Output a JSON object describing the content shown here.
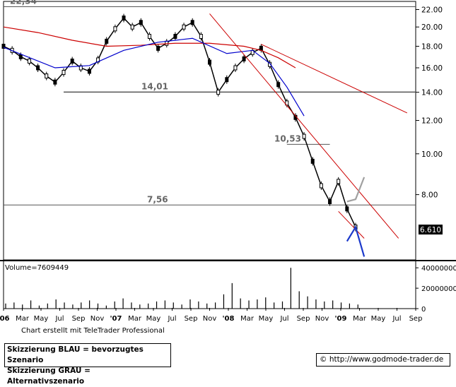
{
  "chart_data": {
    "type": "candlestick",
    "x_ticks": [
      "'06",
      "Mar",
      "May",
      "Jul",
      "Sep",
      "Nov",
      "'07",
      "Mar",
      "May",
      "Jul",
      "Sep",
      "Nov",
      "'08",
      "Mar",
      "May",
      "Jul",
      "Sep",
      "Nov",
      "'09",
      "Mar",
      "May",
      "Jul",
      "Sep"
    ],
    "y_ticks": [
      "22.00",
      "20.00",
      "18.00",
      "16.00",
      "14.00",
      "12.00",
      "10.00",
      "8.00"
    ],
    "ylim": [
      5.6,
      23.0
    ],
    "scale": "log",
    "volume_label": "Volume=7609449",
    "volume_ticks": [
      "40000000",
      "20000000",
      "0"
    ],
    "volume_ylim": [
      0,
      45000000
    ],
    "last_price_label": "6.610",
    "levels": [
      {
        "label": "22,34",
        "value": 22.34
      },
      {
        "label": "14,01",
        "value": 14.01
      },
      {
        "label": "10,53",
        "value": 10.53
      },
      {
        "label": "7,56",
        "value": 7.56
      }
    ],
    "price_path": [
      {
        "x": 0,
        "y": 18.0
      },
      {
        "x": 1,
        "y": 17.6
      },
      {
        "x": 2,
        "y": 17.0
      },
      {
        "x": 3,
        "y": 16.6
      },
      {
        "x": 4,
        "y": 16.0
      },
      {
        "x": 5,
        "y": 15.3
      },
      {
        "x": 6,
        "y": 14.8
      },
      {
        "x": 7,
        "y": 15.6
      },
      {
        "x": 8,
        "y": 16.6
      },
      {
        "x": 9,
        "y": 16.0
      },
      {
        "x": 10,
        "y": 15.7
      },
      {
        "x": 11,
        "y": 16.7
      },
      {
        "x": 12,
        "y": 18.5
      },
      {
        "x": 13,
        "y": 19.8
      },
      {
        "x": 14,
        "y": 21.0
      },
      {
        "x": 15,
        "y": 20.0
      },
      {
        "x": 16,
        "y": 20.5
      },
      {
        "x": 17,
        "y": 19.0
      },
      {
        "x": 18,
        "y": 17.8
      },
      {
        "x": 19,
        "y": 18.3
      },
      {
        "x": 20,
        "y": 19.0
      },
      {
        "x": 21,
        "y": 20.0
      },
      {
        "x": 22,
        "y": 20.5
      },
      {
        "x": 23,
        "y": 19.0
      },
      {
        "x": 24,
        "y": 16.5
      },
      {
        "x": 25,
        "y": 14.0
      },
      {
        "x": 26,
        "y": 15.0
      },
      {
        "x": 27,
        "y": 16.0
      },
      {
        "x": 28,
        "y": 16.8
      },
      {
        "x": 29,
        "y": 17.4
      },
      {
        "x": 30,
        "y": 17.8
      },
      {
        "x": 31,
        "y": 16.3
      },
      {
        "x": 32,
        "y": 14.6
      },
      {
        "x": 33,
        "y": 13.2
      },
      {
        "x": 34,
        "y": 12.2
      },
      {
        "x": 35,
        "y": 11.0
      },
      {
        "x": 36,
        "y": 9.6
      },
      {
        "x": 37,
        "y": 8.4
      },
      {
        "x": 38,
        "y": 7.7
      },
      {
        "x": 39,
        "y": 8.6
      },
      {
        "x": 40,
        "y": 7.4
      },
      {
        "x": 41,
        "y": 6.7
      }
    ],
    "series": [
      {
        "name": "MA",
        "color": "#cc0000",
        "values": [
          {
            "x": 0,
            "y": 20.0
          },
          {
            "x": 4,
            "y": 19.4
          },
          {
            "x": 8,
            "y": 18.6
          },
          {
            "x": 12,
            "y": 18.0
          },
          {
            "x": 16,
            "y": 18.1
          },
          {
            "x": 20,
            "y": 18.3
          },
          {
            "x": 24,
            "y": 18.3
          },
          {
            "x": 28,
            "y": 18.0
          },
          {
            "x": 30,
            "y": 17.6
          },
          {
            "x": 32,
            "y": 16.9
          },
          {
            "x": 34,
            "y": 16.0
          }
        ]
      },
      {
        "name": "MA",
        "color": "#0000cc",
        "values": [
          {
            "x": 0,
            "y": 17.9
          },
          {
            "x": 6,
            "y": 16.0
          },
          {
            "x": 10,
            "y": 16.2
          },
          {
            "x": 14,
            "y": 17.6
          },
          {
            "x": 18,
            "y": 18.4
          },
          {
            "x": 22,
            "y": 18.8
          },
          {
            "x": 26,
            "y": 17.3
          },
          {
            "x": 29,
            "y": 17.6
          },
          {
            "x": 31,
            "y": 16.4
          },
          {
            "x": 33,
            "y": 14.4
          },
          {
            "x": 35,
            "y": 12.3
          }
        ]
      }
    ],
    "trendlines": [
      {
        "color": "#cc0000",
        "from": {
          "x": 24,
          "y": 21.5
        },
        "to": {
          "x": 46,
          "y": 6.3
        }
      },
      {
        "color": "#cc0000",
        "from": {
          "x": 30,
          "y": 18.2
        },
        "to": {
          "x": 47,
          "y": 12.5
        }
      },
      {
        "color": "#cc0000",
        "from": {
          "x": 39,
          "y": 7.3
        },
        "to": {
          "x": 42,
          "y": 6.3
        }
      }
    ],
    "scenarios": [
      {
        "color": "#1c3acb",
        "points": [
          {
            "x": 40,
            "y": 6.2
          },
          {
            "x": 41,
            "y": 6.7
          },
          {
            "x": 42,
            "y": 5.7
          }
        ]
      },
      {
        "color": "#a0a0a0",
        "points": [
          {
            "x": 40,
            "y": 7.7
          },
          {
            "x": 41,
            "y": 7.8
          },
          {
            "x": 42,
            "y": 8.8
          }
        ]
      }
    ],
    "volume": [
      5,
      6,
      4,
      8,
      3,
      5,
      9,
      6,
      4,
      6,
      8,
      5,
      3,
      7,
      10,
      6,
      4,
      5,
      7,
      8,
      6,
      4,
      9,
      7,
      5,
      6,
      14,
      25,
      10,
      8,
      9,
      11,
      6,
      7,
      40,
      17,
      12,
      9,
      7,
      8,
      6,
      5,
      4
    ]
  },
  "footer": {
    "credit": "Chart erstellt mit TeleTrader Professional",
    "legend_blue": "Skizzierung BLAU = bevorzugtes Szenario",
    "legend_grey": "Skizzierung GRAU = Alternativszenario",
    "url": "© http://www.godmode-trader.de"
  }
}
